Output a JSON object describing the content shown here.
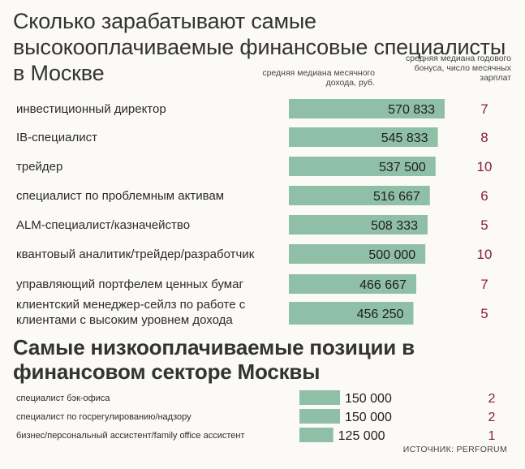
{
  "header": {
    "title": "Сколько зарабатывают самые высокооплачиваемые финансовые специалисты в Москве",
    "col_income": "средняя медиана месячного дохода, руб.",
    "col_bonus": "средняя медиана годового бонуса, число месячных зарплат"
  },
  "lowest": {
    "title": "Самые низкооплачиваемые позиции в финансовом секторе Москвы"
  },
  "source": "ИСТОЧНИК: PERFORUM",
  "colors": {
    "bar": "#8fbfa6",
    "bonus_text": "#8b1f3a",
    "value_text": "#1e1e1e"
  },
  "chart_data": [
    {
      "type": "bar",
      "orientation": "horizontal",
      "categories": [
        "инвестиционный директор",
        "IB-специалист",
        "трейдер",
        "специалист по проблемным активам",
        "ALM-специалист/казначейство",
        "квантовый аналитик/трейдер/разработчик",
        "управляющий портфелем ценных бумаг",
        "клиентский менеджер-сейлз по работе с клиентами с высоким уровнем дохода"
      ],
      "values": [
        570833,
        545833,
        537500,
        516667,
        508333,
        500000,
        466667,
        456250
      ],
      "value_labels": [
        "570 833",
        "545 833",
        "537 500",
        "516 667",
        "508 333",
        "500 000",
        "466 667",
        "456 250"
      ],
      "bonus_months": [
        7,
        8,
        10,
        6,
        5,
        10,
        7,
        5
      ]
    },
    {
      "type": "bar",
      "orientation": "horizontal",
      "categories": [
        "специалист бэк-офиса",
        "специалист по госрегулированию/надзору",
        "бизнес/персональный ассистент/family office ассистент"
      ],
      "values": [
        150000,
        150000,
        125000
      ],
      "value_labels": [
        "150 000",
        "150 000",
        "125 000"
      ],
      "bonus_months": [
        2,
        2,
        1
      ]
    }
  ]
}
